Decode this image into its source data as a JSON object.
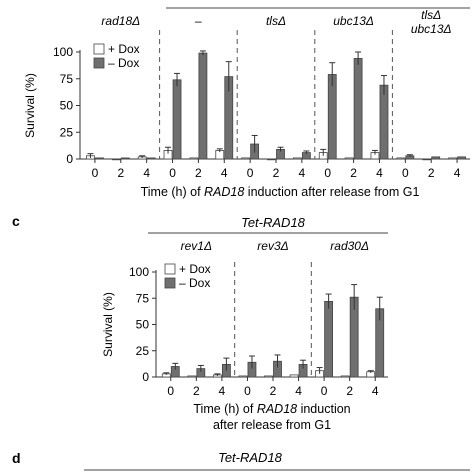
{
  "chart_data": [
    {
      "type": "bar",
      "title": "",
      "ylabel": "Survival (%)",
      "xlabel_parts": [
        "Time (h) of ",
        "RAD18",
        " induction after release from G1"
      ],
      "ylim": [
        0,
        100
      ],
      "yticks": [
        "0",
        "25",
        "50",
        "75",
        "100"
      ],
      "legend": [
        "+ Dox",
        "– Dox"
      ],
      "legend_position": "top-left",
      "colors": {
        "plus_dox": "#ffffff",
        "minus_dox": "#6f6f6f"
      },
      "groups": [
        {
          "label": "rad18Δ",
          "label2": "",
          "x": [
            "0",
            "2",
            "4"
          ],
          "plus_dox": [
            3,
            0,
            2
          ],
          "minus_dox": [
            1,
            1,
            1
          ],
          "plus_err": [
            2,
            0.5,
            1
          ],
          "minus_err": [
            0.5,
            0.5,
            0.5
          ]
        },
        {
          "label": "–",
          "label2": "",
          "x": [
            "0",
            "2",
            "4"
          ],
          "plus_dox": [
            8,
            1,
            8
          ],
          "minus_dox": [
            74,
            99,
            77
          ],
          "plus_err": [
            3,
            0.5,
            1.5
          ],
          "minus_err": [
            6,
            2,
            14
          ]
        },
        {
          "label": "tlsΔ",
          "label2": "",
          "x": [
            "0",
            "2",
            "4"
          ],
          "plus_dox": [
            1,
            0,
            1
          ],
          "minus_dox": [
            14,
            9,
            6
          ],
          "plus_err": [
            0.5,
            0.5,
            0.5
          ],
          "minus_err": [
            8,
            2,
            1.5
          ]
        },
        {
          "label": "ubc13Δ",
          "label2": "",
          "x": [
            "0",
            "2",
            "4"
          ],
          "plus_dox": [
            6,
            1,
            6
          ],
          "minus_dox": [
            79,
            94,
            69
          ],
          "plus_err": [
            3,
            0.5,
            2
          ],
          "minus_err": [
            11,
            6,
            9
          ]
        },
        {
          "label": "tlsΔ",
          "label2": "ubc13Δ",
          "x": [
            "0",
            "2",
            "4"
          ],
          "plus_dox": [
            1,
            0,
            1
          ],
          "minus_dox": [
            3,
            2,
            2
          ],
          "plus_err": [
            0.5,
            0.5,
            0.5
          ],
          "minus_err": [
            1,
            0.5,
            0.5
          ]
        }
      ]
    },
    {
      "type": "bar",
      "title": "Tet-RAD18",
      "ylabel": "Survival (%)",
      "xlabel_line1_parts": [
        "Time (h) of ",
        "RAD18",
        " induction"
      ],
      "xlabel_line2": "after release from G1",
      "ylim": [
        0,
        100
      ],
      "yticks": [
        "0",
        "25",
        "50",
        "75",
        "100"
      ],
      "legend": [
        "+ Dox",
        "– Dox"
      ],
      "legend_position": "top-left",
      "colors": {
        "plus_dox": "#ffffff",
        "minus_dox": "#6f6f6f"
      },
      "groups": [
        {
          "label": "rev1Δ",
          "x": [
            "0",
            "2",
            "4"
          ],
          "plus_dox": [
            3,
            1,
            2
          ],
          "minus_dox": [
            10,
            8,
            12
          ],
          "plus_err": [
            1,
            0.5,
            1
          ],
          "minus_err": [
            3,
            3,
            6
          ]
        },
        {
          "label": "rev3Δ",
          "x": [
            "0",
            "2",
            "4"
          ],
          "plus_dox": [
            1,
            1,
            2
          ],
          "minus_dox": [
            14,
            15,
            12
          ],
          "plus_err": [
            0.5,
            0.5,
            0.5
          ],
          "minus_err": [
            6,
            6,
            4
          ]
        },
        {
          "label": "rad30Δ",
          "x": [
            "0",
            "2",
            "4"
          ],
          "plus_dox": [
            6,
            1,
            5
          ],
          "minus_dox": [
            72,
            76,
            65
          ],
          "plus_err": [
            3,
            0.5,
            1
          ],
          "minus_err": [
            7,
            12,
            11
          ]
        }
      ]
    }
  ],
  "panel_labels": {
    "c": "c",
    "d": "d"
  },
  "panel_d_title": "Tet-RAD18"
}
